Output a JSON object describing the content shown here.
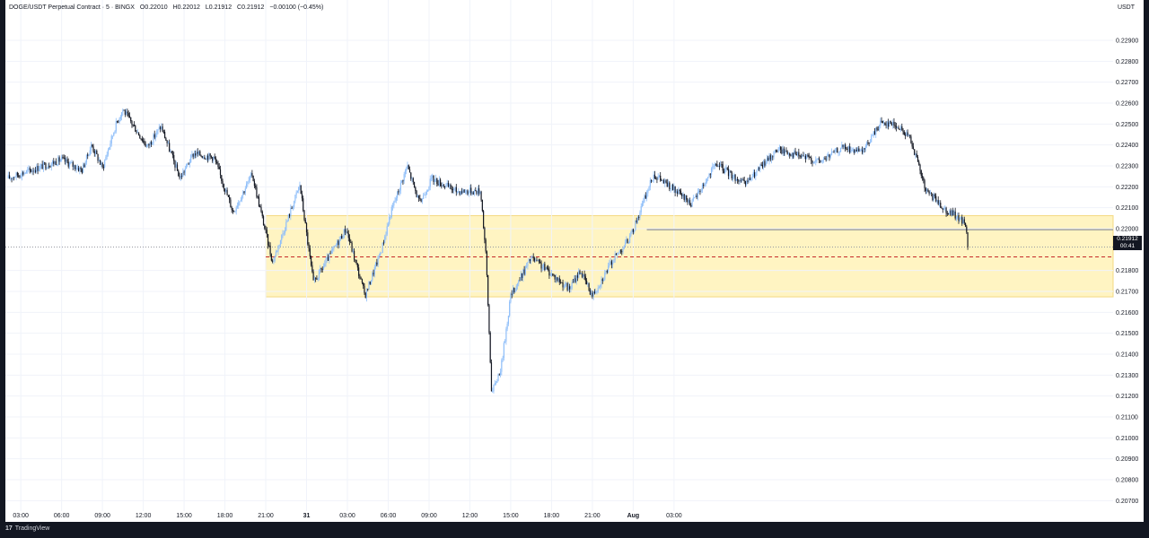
{
  "legend": {
    "symbol": "DOGE/USDT Perpetual Contract · 5 · BINGX",
    "open": "O0.22010",
    "high": "H0.22012",
    "low": "L0.21912",
    "close": "C0.21912",
    "change": "−0.00100 (−0.45%)"
  },
  "currency": "USDT",
  "last_price": "0.21912",
  "countdown": "00:41",
  "footer": {
    "brand": "TradingView"
  },
  "colors": {
    "up": "#90bff9",
    "down": "#131722",
    "zone_fill": "#fff3b8",
    "zone_stroke": "#f2d36b"
  },
  "chart_data": {
    "type": "candlestick",
    "timeframe": "5",
    "y_ticks": [
      "0.22900",
      "0.22800",
      "0.22700",
      "0.22600",
      "0.22500",
      "0.22400",
      "0.22300",
      "0.22200",
      "0.22100",
      "0.22000",
      "0.21800",
      "0.21700",
      "0.21600",
      "0.21500",
      "0.21400",
      "0.21300",
      "0.21200",
      "0.21100",
      "0.21000",
      "0.20900",
      "0.20800",
      "0.20700"
    ],
    "ylim": [
      0.2065,
      0.2305
    ],
    "x_ticks": [
      "03:00",
      "06:00",
      "09:00",
      "12:00",
      "15:00",
      "18:00",
      "21:00",
      "31",
      "03:00",
      "06:00",
      "09:00",
      "12:00",
      "15:00",
      "18:00",
      "21:00",
      "Aug",
      "03:00"
    ],
    "path": [
      [
        0,
        0.2224
      ],
      [
        4,
        0.2233
      ],
      [
        5.5,
        0.2228
      ],
      [
        6.2,
        0.224
      ],
      [
        7,
        0.2229
      ],
      [
        8,
        0.225
      ],
      [
        8.5,
        0.2257
      ],
      [
        10.3,
        0.2239
      ],
      [
        11.3,
        0.2249
      ],
      [
        12.7,
        0.2224
      ],
      [
        13.7,
        0.2236
      ],
      [
        15.2,
        0.2234
      ],
      [
        16.6,
        0.2208
      ],
      [
        18,
        0.2226
      ],
      [
        19.5,
        0.2184
      ],
      [
        21.5,
        0.2221
      ],
      [
        22.5,
        0.2174
      ],
      [
        24.9,
        0.22
      ],
      [
        26.3,
        0.2168
      ],
      [
        27.5,
        0.219
      ],
      [
        28.2,
        0.2208
      ],
      [
        29.4,
        0.223
      ],
      [
        30.3,
        0.2212
      ],
      [
        31.2,
        0.2224
      ],
      [
        33,
        0.2218
      ],
      [
        34.8,
        0.2218
      ],
      [
        35.2,
        0.2185
      ],
      [
        35.6,
        0.2121
      ],
      [
        36.3,
        0.2134
      ],
      [
        37.0,
        0.2168
      ],
      [
        38.5,
        0.2186
      ],
      [
        39.7,
        0.218
      ],
      [
        41.3,
        0.2171
      ],
      [
        42.1,
        0.218
      ],
      [
        43.0,
        0.2168
      ],
      [
        44.5,
        0.2185
      ],
      [
        45.8,
        0.2196
      ],
      [
        47.5,
        0.2226
      ],
      [
        50.3,
        0.2212
      ],
      [
        52.1,
        0.2231
      ],
      [
        54.2,
        0.2221
      ],
      [
        56.6,
        0.2238
      ],
      [
        59.7,
        0.2232
      ],
      [
        61.4,
        0.2239
      ],
      [
        62.8,
        0.2236
      ],
      [
        64.2,
        0.2251
      ],
      [
        65.2,
        0.225
      ],
      [
        66.4,
        0.2243
      ],
      [
        67.5,
        0.2218
      ],
      [
        69.0,
        0.2209
      ],
      [
        70.4,
        0.2203
      ],
      [
        70.6,
        0.21912
      ]
    ],
    "zone": {
      "from_time": "21:00",
      "top": 0.22062,
      "bottom": 0.21674
    },
    "levels": [
      {
        "type": "solid",
        "value": 0.21995
      },
      {
        "type": "dashed",
        "value": 0.21865
      },
      {
        "type": "dotted",
        "value": 0.21912
      }
    ],
    "last": {
      "value": 0.21912,
      "label": "0.21912",
      "countdown": "00:41"
    }
  }
}
